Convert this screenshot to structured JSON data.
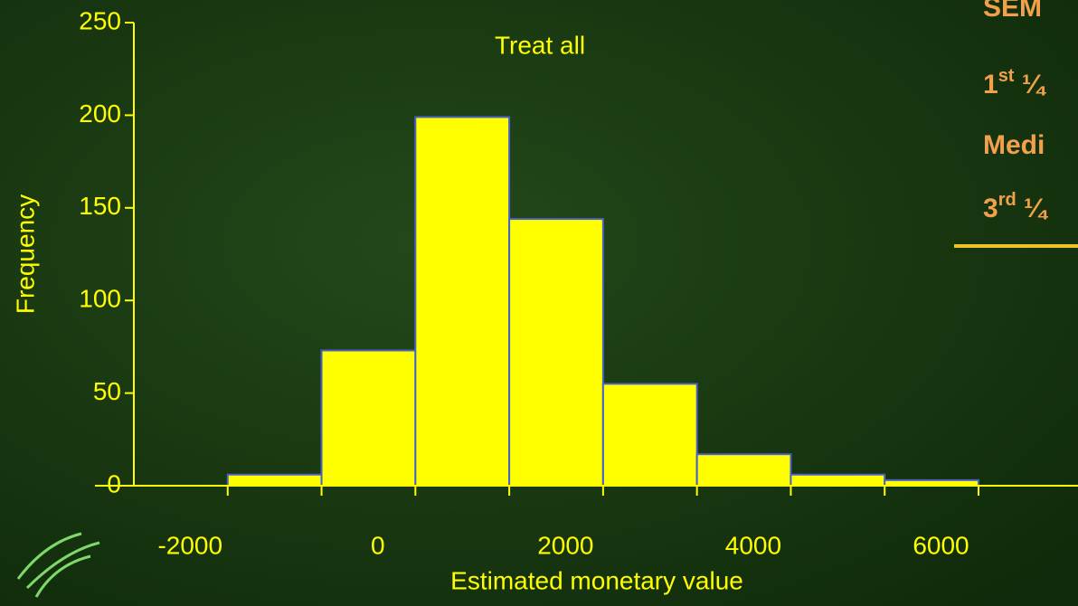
{
  "chart_data": {
    "type": "histogram",
    "title": "Treat all",
    "x_label": "Estimated monetary value",
    "y_label": "Frequency",
    "bins": [
      -1600,
      -600,
      400,
      1400,
      2400,
      3400,
      4400,
      5400,
      6400
    ],
    "values": [
      6,
      73,
      199,
      144,
      55,
      17,
      6,
      3
    ],
    "color": "#ffff00",
    "edge_color": "#4a62c8",
    "xlim": [
      -2600,
      7460
    ],
    "xticks": [
      -2000,
      0,
      2000,
      4000,
      6000
    ],
    "ylim": [
      0,
      250
    ],
    "yticks": [
      0,
      50,
      100,
      150,
      200,
      250
    ],
    "grid": false
  },
  "side_panel": {
    "lines": [
      {
        "text": "SEM"
      },
      {
        "text": "1",
        "sup": "st",
        "tail": " ¼"
      },
      {
        "text": "Medi"
      },
      {
        "text": "3",
        "sup": "rd",
        "tail": " ¼"
      }
    ]
  }
}
